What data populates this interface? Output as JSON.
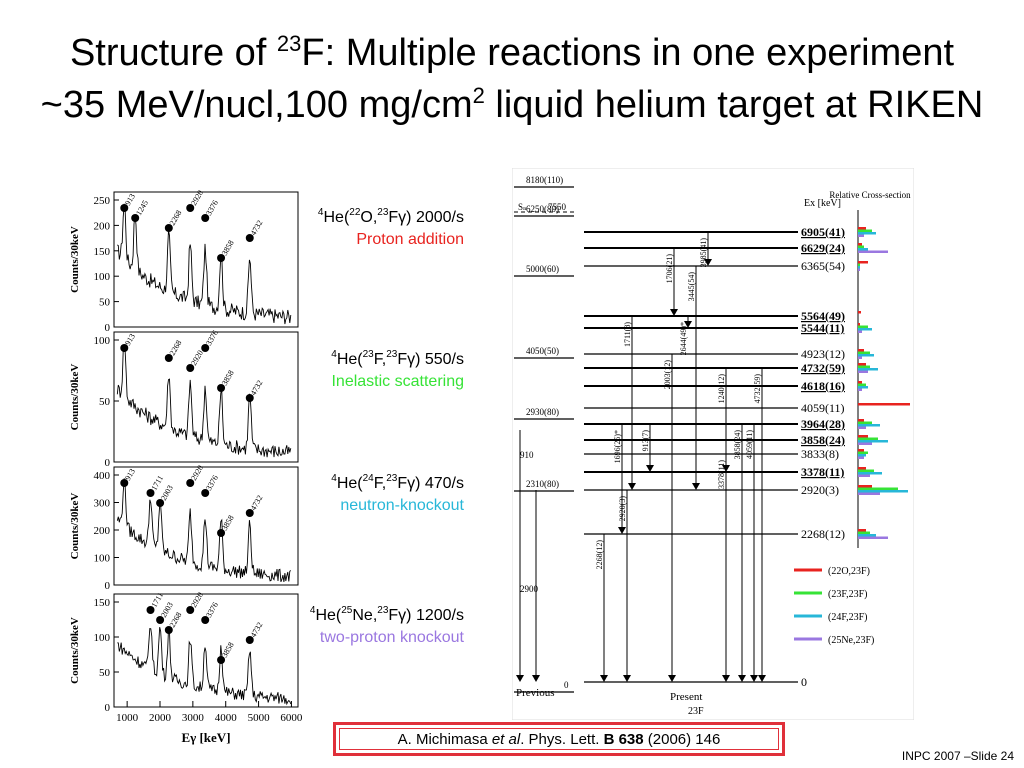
{
  "title": {
    "line1_pre": "Structure of ",
    "line1_mass": "23",
    "line1_post": "F: Multiple reactions in one experiment",
    "line2_pre": "~35 MeV/nucl,100 mg/cm",
    "line2_exp": "2",
    "line2_post": " liquid helium target at RIKEN"
  },
  "spectra": {
    "ylabel": "Counts/30keV",
    "xlabel": "Eγ [keV]",
    "xticks": [
      "1000",
      "2000",
      "3000",
      "4000",
      "5000",
      "6000"
    ],
    "panels": [
      {
        "yticks": [
          "0",
          "50",
          "100",
          "150",
          "200",
          "250"
        ],
        "peaks": [
          "913",
          "1245",
          "2268",
          "2920",
          "3376",
          "3858",
          "4732"
        ],
        "reaction": {
          "pre": "He(",
          "m1": "22",
          "e1": "O,",
          "m2": "23",
          "e2": "Fγ) 2000/s",
          "m0": "4"
        },
        "desc": "Proton addition",
        "color": "#e8231f"
      },
      {
        "yticks": [
          "0",
          "50",
          "100"
        ],
        "peaks": [
          "913",
          "2268",
          "2920",
          "3376",
          "3858",
          "4732"
        ],
        "reaction": {
          "pre": "He(",
          "m1": "23",
          "e1": "F,",
          "m2": "23",
          "e2": "Fγ) 550/s",
          "m0": "4"
        },
        "desc": "Inelastic scattering",
        "color": "#36e336"
      },
      {
        "yticks": [
          "0",
          "100",
          "200",
          "300",
          "400"
        ],
        "peaks": [
          "913",
          "1711",
          "2003",
          "2920",
          "3376",
          "3858",
          "4732"
        ],
        "reaction": {
          "pre": "He(",
          "m1": "24",
          "e1": "F,",
          "m2": "23",
          "e2": "Fγ) 470/s",
          "m0": "4"
        },
        "desc": "neutron-knockout",
        "color": "#27b7d8"
      },
      {
        "yticks": [
          "0",
          "50",
          "100",
          "150"
        ],
        "peaks": [
          "1711",
          "2003",
          "2268",
          "2920",
          "3376",
          "3858",
          "4732"
        ],
        "reaction": {
          "pre": "He(",
          "m1": "25",
          "e1": "Ne,",
          "m2": "23",
          "e2": "Fγ) 1200/s",
          "m0": "4"
        },
        "desc": "two-proton knockout",
        "color": "#9a77e0"
      }
    ]
  },
  "level_scheme": {
    "ex_header": "Ex [keV]",
    "rel_header": "Relative Cross-section",
    "sn_label": "Sₙ",
    "sn_value": "7550",
    "previous_label": "Previous",
    "present_label": "Present",
    "nucleus_label": "23F",
    "previous_levels": [
      "8180(110)",
      "6250(80)",
      "5000(60)",
      "4050(50)",
      "2930(80)",
      "2310(80)",
      "2900",
      "910",
      "0"
    ],
    "present_levels": [
      {
        "e": "6905(41)",
        "bold": true
      },
      {
        "e": "6629(24)",
        "bold": true
      },
      {
        "e": "6365(54)",
        "bold": false
      },
      {
        "e": "5564(49)",
        "bold": true
      },
      {
        "e": "5544(11)",
        "bold": true
      },
      {
        "e": "4923(12)",
        "bold": false
      },
      {
        "e": "4732(59)",
        "bold": true
      },
      {
        "e": "4618(16)",
        "bold": true
      },
      {
        "e": "4059(11)",
        "bold": false
      },
      {
        "e": "3964(28)",
        "bold": true
      },
      {
        "e": "3858(24)",
        "bold": true
      },
      {
        "e": "3833(8)",
        "bold": false
      },
      {
        "e": "3378(11)",
        "bold": true
      },
      {
        "e": "2920(3)",
        "bold": false
      },
      {
        "e": "2268(12)",
        "bold": false
      },
      {
        "e": "0",
        "bold": false
      }
    ],
    "transitions": [
      "3985(41)",
      "1706(21)",
      "3445(54)",
      "2644(49)*",
      "1711(8)",
      "2003(12)",
      "1240(12)",
      "4732(59)",
      "3858(24)",
      "4059(11)",
      "1696(25)*",
      "913(7)",
      "3378(11)",
      "2920(3)",
      "2268(12)"
    ],
    "legend": [
      {
        "label": "(22O,23F)",
        "color": "#e8231f"
      },
      {
        "label": "(23F,23F)",
        "color": "#36e336"
      },
      {
        "label": "(24F,23F)",
        "color": "#27b7d8"
      },
      {
        "label": "(25Ne,23F)",
        "color": "#9a77e0"
      }
    ]
  },
  "citation": {
    "authors": "A. Michimasa ",
    "etal": "et al",
    "journal": ". Phys. Lett. ",
    "volume": "B 638",
    "rest": " (2006) 146"
  },
  "footer": "INPC 2007 –Slide 24"
}
